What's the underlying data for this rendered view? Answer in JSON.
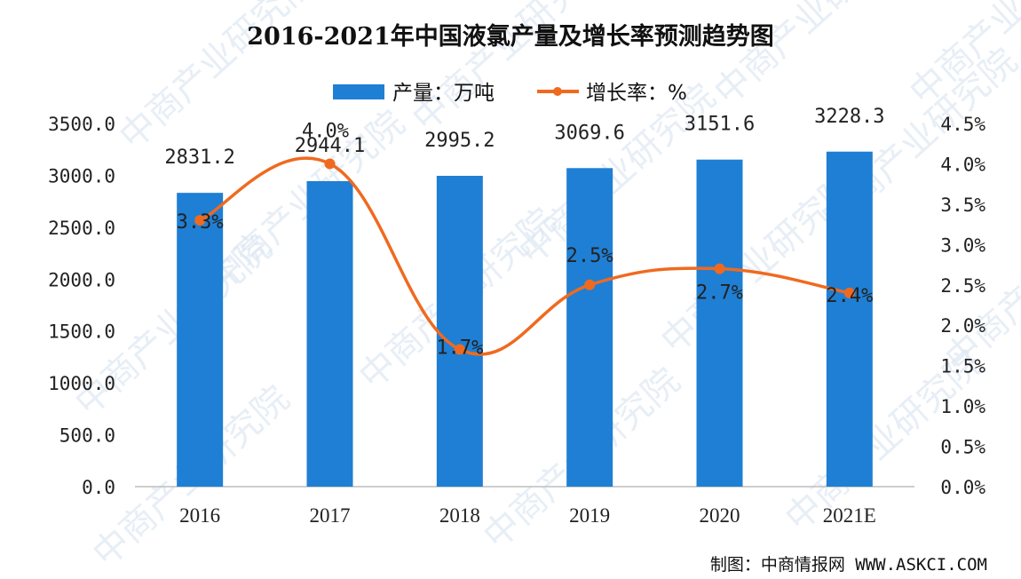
{
  "title": "2016-2021年中国液氯产量及增长率预测趋势图",
  "credit": "制图：中商情报网 WWW.ASKCI.COM",
  "watermark_text": "中商产业研究院",
  "colors": {
    "bar": "#1f7fd4",
    "line": "#ef6a1f",
    "axis": "#bdbdbd"
  },
  "chart_data": {
    "type": "bar",
    "categories": [
      "2016",
      "2017",
      "2018",
      "2019",
      "2020",
      "2021E"
    ],
    "series": [
      {
        "name": "产量：万吨",
        "type": "bar",
        "axis": "left",
        "values": [
          2831.2,
          2944.1,
          2995.2,
          3069.6,
          3151.6,
          3228.3
        ],
        "labels": [
          "2831.2",
          "2944.1",
          "2995.2",
          "3069.6",
          "3151.6",
          "3228.3"
        ]
      },
      {
        "name": "增长率：%",
        "type": "line",
        "axis": "right",
        "values": [
          3.3,
          4.0,
          1.7,
          2.5,
          2.7,
          2.4
        ],
        "labels": [
          "3.3%",
          "4.0%",
          "1.7%",
          "2.5%",
          "2.7%",
          "2.4%"
        ]
      }
    ],
    "y_left": {
      "lim": [
        0,
        3500
      ],
      "ticks": [
        "0.0",
        "500.0",
        "1000.0",
        "1500.0",
        "2000.0",
        "2500.0",
        "3000.0",
        "3500.0"
      ]
    },
    "y_right": {
      "lim": [
        0,
        4.5
      ],
      "ticks": [
        "0.0%",
        "0.5%",
        "1.0%",
        "1.5%",
        "2.0%",
        "2.5%",
        "3.0%",
        "3.5%",
        "4.0%",
        "4.5%"
      ]
    },
    "grid": false,
    "legend_position": "top-center"
  }
}
